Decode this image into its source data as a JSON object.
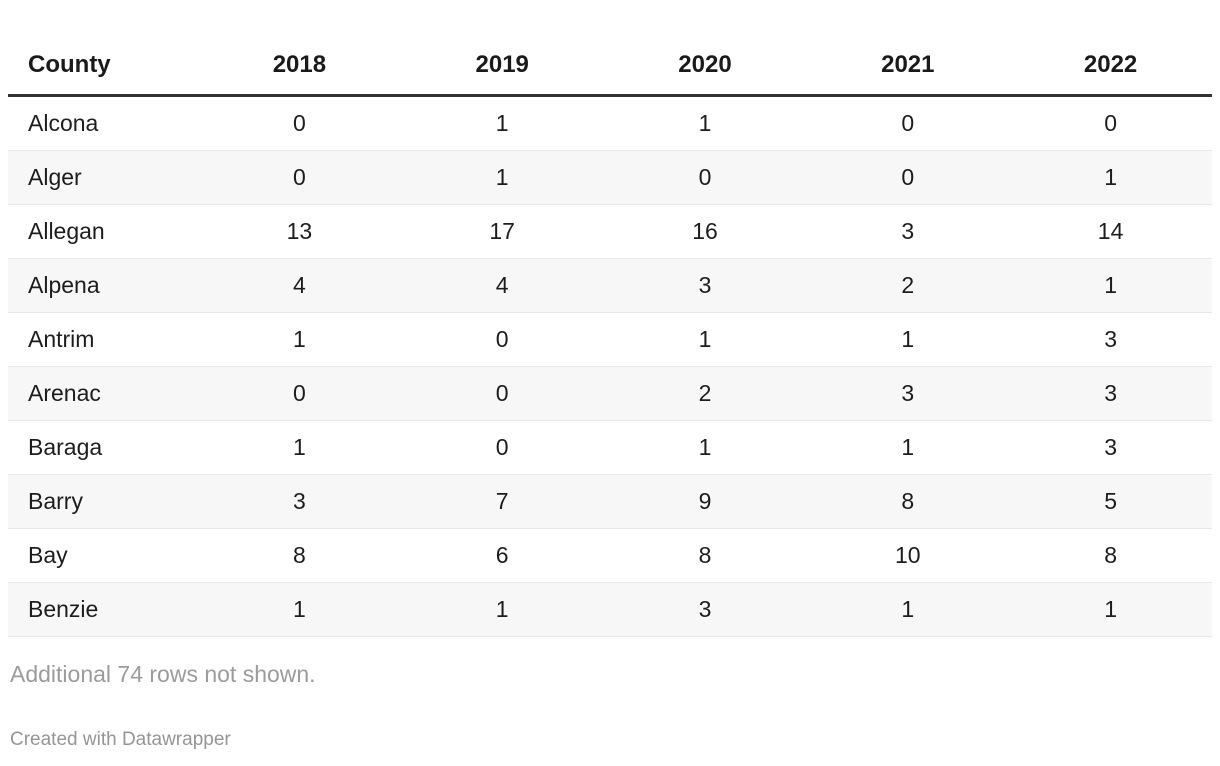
{
  "chart_data": {
    "type": "table",
    "columns": [
      "County",
      "2018",
      "2019",
      "2020",
      "2021",
      "2022"
    ],
    "rows": [
      {
        "county": "Alcona",
        "values": [
          "0",
          "1",
          "1",
          "0",
          "0"
        ]
      },
      {
        "county": "Alger",
        "values": [
          "0",
          "1",
          "0",
          "0",
          "1"
        ]
      },
      {
        "county": "Allegan",
        "values": [
          "13",
          "17",
          "16",
          "3",
          "14"
        ]
      },
      {
        "county": "Alpena",
        "values": [
          "4",
          "4",
          "3",
          "2",
          "1"
        ]
      },
      {
        "county": "Antrim",
        "values": [
          "1",
          "0",
          "1",
          "1",
          "3"
        ]
      },
      {
        "county": "Arenac",
        "values": [
          "0",
          "0",
          "2",
          "3",
          "3"
        ]
      },
      {
        "county": "Baraga",
        "values": [
          "1",
          "0",
          "1",
          "1",
          "3"
        ]
      },
      {
        "county": "Barry",
        "values": [
          "3",
          "7",
          "9",
          "8",
          "5"
        ]
      },
      {
        "county": "Bay",
        "values": [
          "8",
          "6",
          "8",
          "10",
          "8"
        ]
      },
      {
        "county": "Benzie",
        "values": [
          "1",
          "1",
          "3",
          "1",
          "1"
        ]
      }
    ],
    "layout": {
      "zebra_striping": true,
      "striped_row_indexes": [
        1,
        3,
        5,
        7,
        9
      ],
      "county_column_align": "left",
      "year_columns_align": "center"
    }
  },
  "footer": {
    "note": "Additional 74 rows not shown.",
    "attribution": "Created with Datawrapper"
  },
  "colors": {
    "background": "#ffffff",
    "header_text": "#1a1a1a",
    "header_border": "#333333",
    "cell_text": "#1d1d1d",
    "row_border": "#e8e8e8",
    "stripe_background": "#f7f7f7",
    "note_text": "#9b9b9b",
    "attribution_text": "#959595"
  }
}
